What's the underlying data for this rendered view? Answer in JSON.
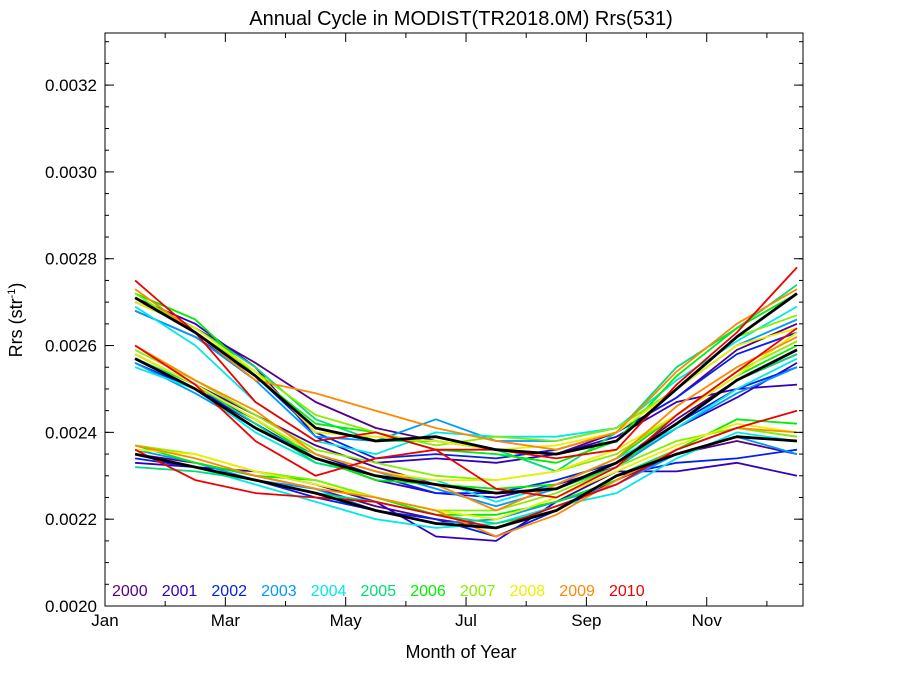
{
  "chart_data": {
    "type": "line",
    "title": "Annual Cycle in MODIST(TR2018.0M) Rrs(531)",
    "xlabel": "Month of Year",
    "ylabel": "Rrs (str",
    "ylabel_exp": "-1",
    "ylabel_close": ")",
    "xlim": [
      1,
      12.6
    ],
    "ylim": [
      0.002,
      0.00332
    ],
    "x_ticks": [
      {
        "value": 1,
        "label": "Jan"
      },
      {
        "value": 3,
        "label": "Mar"
      },
      {
        "value": 5,
        "label": "May"
      },
      {
        "value": 7,
        "label": "Jul"
      },
      {
        "value": 9,
        "label": "Sep"
      },
      {
        "value": 11,
        "label": "Nov"
      }
    ],
    "y_ticks": [
      {
        "value": 0.002,
        "label": "0.0020"
      },
      {
        "value": 0.0022,
        "label": "0.0022"
      },
      {
        "value": 0.0024,
        "label": "0.0024"
      },
      {
        "value": 0.0026,
        "label": "0.0026"
      },
      {
        "value": 0.0028,
        "label": "0.0028"
      },
      {
        "value": 0.003,
        "label": "0.0030"
      },
      {
        "value": 0.0032,
        "label": "0.0032"
      }
    ],
    "x": [
      1.5,
      2.5,
      3.5,
      4.5,
      5.5,
      6.5,
      7.5,
      8.5,
      9.5,
      10.5,
      11.5,
      12.5
    ],
    "grid": false,
    "legend_position": "bottom-left",
    "series": [
      {
        "name": "2000",
        "color": "#550088",
        "groups": [
          [
            0.0027,
            0.00264,
            0.00256,
            0.00247,
            0.00241,
            0.00238,
            0.00236,
            0.00235,
            0.0024,
            0.00248,
            0.00259,
            0.00265
          ],
          [
            0.00258,
            0.00251,
            0.00244,
            0.00237,
            0.00232,
            0.00228,
            0.00226,
            0.00227,
            0.00233,
            0.00243,
            0.00252,
            0.00258
          ],
          [
            0.00235,
            0.00233,
            0.0023,
            0.00227,
            0.00223,
            0.0022,
            0.00218,
            0.00222,
            0.00229,
            0.00235,
            0.00238,
            0.00235
          ]
        ]
      },
      {
        "name": "2001",
        "color": "#3300bb",
        "groups": [
          [
            0.00271,
            0.00265,
            0.00255,
            0.00239,
            0.00233,
            0.00234,
            0.00233,
            0.00235,
            0.00239,
            0.00247,
            0.0025,
            0.00251
          ],
          [
            0.00257,
            0.0025,
            0.00242,
            0.00234,
            0.00229,
            0.00226,
            0.00225,
            0.00228,
            0.00232,
            0.00241,
            0.00248,
            0.00256
          ],
          [
            0.00233,
            0.00232,
            0.00231,
            0.00228,
            0.00224,
            0.00216,
            0.00215,
            0.00224,
            0.00231,
            0.00231,
            0.00233,
            0.0023
          ]
        ]
      },
      {
        "name": "2002",
        "color": "#0022ee",
        "groups": [
          [
            0.00268,
            0.00262,
            0.00253,
            0.0024,
            0.00234,
            0.00235,
            0.00234,
            0.00236,
            0.0024,
            0.00248,
            0.00258,
            0.00263
          ],
          [
            0.00256,
            0.0025,
            0.00243,
            0.00235,
            0.0023,
            0.00226,
            0.00226,
            0.00229,
            0.00233,
            0.00242,
            0.0025,
            0.00255
          ],
          [
            0.00234,
            0.00232,
            0.00229,
            0.00225,
            0.00222,
            0.0022,
            0.00216,
            0.00222,
            0.0023,
            0.00233,
            0.00234,
            0.00236
          ]
        ]
      },
      {
        "name": "2003",
        "color": "#0099ff",
        "groups": [
          [
            0.00268,
            0.00262,
            0.00252,
            0.00239,
            0.00238,
            0.00243,
            0.00238,
            0.00238,
            0.00241,
            0.0025,
            0.0026,
            0.00266
          ],
          [
            0.00256,
            0.00249,
            0.00241,
            0.00235,
            0.00231,
            0.00227,
            0.00223,
            0.00227,
            0.00232,
            0.00241,
            0.00249,
            0.00255
          ],
          [
            0.00236,
            0.00233,
            0.00229,
            0.00227,
            0.00222,
            0.00219,
            0.0022,
            0.00224,
            0.00228,
            0.00235,
            0.00239,
            0.00235
          ]
        ]
      },
      {
        "name": "2004",
        "color": "#00e8e8",
        "groups": [
          [
            0.00269,
            0.0026,
            0.00247,
            0.00238,
            0.00235,
            0.0024,
            0.00239,
            0.00239,
            0.00241,
            0.00252,
            0.00261,
            0.00269
          ],
          [
            0.00255,
            0.0025,
            0.0024,
            0.00233,
            0.0023,
            0.00229,
            0.00224,
            0.00228,
            0.00234,
            0.00241,
            0.0025,
            0.00257
          ],
          [
            0.00235,
            0.00232,
            0.00228,
            0.00224,
            0.0022,
            0.00218,
            0.00219,
            0.00223,
            0.00226,
            0.00234,
            0.0024,
            0.00238
          ]
        ]
      },
      {
        "name": "2005",
        "color": "#00dd77",
        "groups": [
          [
            0.00271,
            0.00264,
            0.00255,
            0.00243,
            0.00238,
            0.00238,
            0.00236,
            0.00231,
            0.0024,
            0.00255,
            0.00264,
            0.00274
          ],
          [
            0.00257,
            0.00251,
            0.00242,
            0.00233,
            0.0023,
            0.00228,
            0.00226,
            0.00227,
            0.00232,
            0.00242,
            0.00252,
            0.00258
          ],
          [
            0.00232,
            0.00231,
            0.00229,
            0.00226,
            0.00224,
            0.00221,
            0.00219,
            0.00222,
            0.0023,
            0.00236,
            0.00241,
            0.00239
          ]
        ]
      },
      {
        "name": "2006",
        "color": "#00ee00",
        "groups": [
          [
            0.00272,
            0.00266,
            0.00253,
            0.00242,
            0.0024,
            0.00236,
            0.00235,
            0.00233,
            0.00238,
            0.00253,
            0.00264,
            0.00272
          ],
          [
            0.00258,
            0.00251,
            0.00243,
            0.00234,
            0.00229,
            0.00228,
            0.00227,
            0.00228,
            0.00234,
            0.00244,
            0.00253,
            0.0026
          ],
          [
            0.00237,
            0.00233,
            0.0023,
            0.00229,
            0.00225,
            0.00221,
            0.00221,
            0.00224,
            0.00229,
            0.00236,
            0.00243,
            0.00242
          ]
        ]
      },
      {
        "name": "2007",
        "color": "#88ee00",
        "groups": [
          [
            0.00272,
            0.00263,
            0.00254,
            0.00244,
            0.0024,
            0.00237,
            0.00239,
            0.00238,
            0.00241,
            0.0025,
            0.00262,
            0.00267
          ],
          [
            0.00259,
            0.00252,
            0.00244,
            0.00236,
            0.00233,
            0.0023,
            0.00229,
            0.00231,
            0.00235,
            0.00244,
            0.00254,
            0.00261
          ],
          [
            0.00237,
            0.00235,
            0.00231,
            0.00229,
            0.00225,
            0.00222,
            0.00222,
            0.00226,
            0.00232,
            0.00238,
            0.00241,
            0.00239
          ]
        ]
      },
      {
        "name": "2008",
        "color": "#eeee00",
        "groups": [
          [
            0.0027,
            0.00264,
            0.00254,
            0.0024,
            0.00239,
            0.00238,
            0.00236,
            0.00237,
            0.0024,
            0.0025,
            0.0026,
            0.00264
          ],
          [
            0.00258,
            0.00251,
            0.00243,
            0.00235,
            0.00231,
            0.00229,
            0.00229,
            0.00231,
            0.00236,
            0.00244,
            0.00253,
            0.00263
          ],
          [
            0.00236,
            0.00235,
            0.00231,
            0.00228,
            0.00225,
            0.00222,
            0.0022,
            0.00225,
            0.00231,
            0.00237,
            0.00242,
            0.0024
          ]
        ]
      },
      {
        "name": "2009",
        "color": "#ff8800",
        "groups": [
          [
            0.00273,
            0.00263,
            0.00252,
            0.00249,
            0.00245,
            0.00241,
            0.00238,
            0.00236,
            0.0024,
            0.00254,
            0.00265,
            0.00273
          ],
          [
            0.0026,
            0.00252,
            0.00245,
            0.00235,
            0.00231,
            0.00228,
            0.00222,
            0.00228,
            0.00234,
            0.00246,
            0.00255,
            0.00262
          ],
          [
            0.00237,
            0.00234,
            0.0023,
            0.00227,
            0.00225,
            0.00222,
            0.00216,
            0.00221,
            0.00229,
            0.00236,
            0.00241,
            0.0024
          ]
        ]
      },
      {
        "name": "2010",
        "color": "#ee0000",
        "groups": [
          [
            0.00275,
            0.00263,
            0.00247,
            0.00238,
            0.0024,
            0.00236,
            0.00236,
            0.00234,
            0.00236,
            0.00251,
            0.00263,
            0.00278
          ],
          [
            0.0026,
            0.00251,
            0.00238,
            0.0023,
            0.00234,
            0.00236,
            0.00227,
            0.00225,
            0.00232,
            0.00244,
            0.00254,
            0.00264
          ],
          [
            0.00236,
            0.00229,
            0.00226,
            0.00225,
            0.00224,
            0.00221,
            0.00218,
            0.00223,
            0.00228,
            0.00236,
            0.00241,
            0.00245
          ]
        ]
      },
      {
        "name": "",
        "color": "#000000",
        "mean": true,
        "groups": [
          [
            0.00271,
            0.00263,
            0.00253,
            0.00241,
            0.00238,
            0.00239,
            0.00236,
            0.00235,
            0.00238,
            0.0025,
            0.00262,
            0.00272
          ],
          [
            0.00257,
            0.0025,
            0.00241,
            0.00234,
            0.0023,
            0.00228,
            0.00226,
            0.00227,
            0.00233,
            0.00242,
            0.00252,
            0.00259
          ],
          [
            0.00235,
            0.00232,
            0.00229,
            0.00226,
            0.00222,
            0.00219,
            0.00218,
            0.00222,
            0.0023,
            0.00235,
            0.00239,
            0.00238
          ]
        ]
      }
    ]
  }
}
